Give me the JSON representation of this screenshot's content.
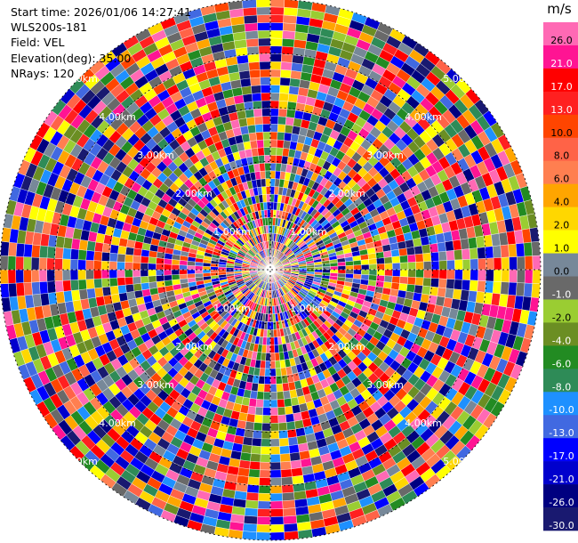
{
  "info": {
    "start_time": "Start time: 2026/01/06 14:27:41",
    "instrument": "WLS200s-181",
    "field": "Field: VEL",
    "elevation": "Elevation(deg): 35.00",
    "nrays": "NRays: 120"
  },
  "chart_data": {
    "type": "heatmap",
    "projection": "polar-ppi",
    "field": "VEL",
    "unit": "m/s",
    "n_rays": 120,
    "range_rings_km": [
      1.0,
      2.0,
      3.0,
      4.0,
      5.0
    ],
    "range_ring_labels": [
      "1.00km",
      "2.00km",
      "3.00km",
      "4.00km",
      "5.00km"
    ],
    "range_ring_label_angles_deg": [
      45,
      135,
      225,
      315
    ],
    "max_range_km": 5.0,
    "grid": true,
    "colorbar": {
      "label": "m/s",
      "placement": "right",
      "ticks": [
        26.0,
        21.0,
        17.0,
        13.0,
        10.0,
        8.0,
        6.0,
        4.0,
        2.0,
        1.0,
        0.0,
        -1.0,
        -2.0,
        -4.0,
        -6.0,
        -8.0,
        -10.0,
        -13.0,
        -17.0,
        -21.0,
        -26.0,
        -30.0
      ],
      "tick_labels": [
        "26.0",
        "21.0",
        "17.0",
        "13.0",
        "10.0",
        "8.0",
        "6.0",
        "4.0",
        "2.0",
        "1.0",
        "0.0",
        "-1.0",
        "-2.0",
        "-4.0",
        "-6.0",
        "-8.0",
        "-10.0",
        "-13.0",
        "-17.0",
        "-21.0",
        "-26.0",
        "-30.0"
      ],
      "colors": [
        "#ff69b4",
        "#ff1493",
        "#ff0000",
        "#ff2020",
        "#ff4500",
        "#ff6347",
        "#ff7f50",
        "#ffa500",
        "#ffd700",
        "#ffff00",
        "#778899",
        "#696969",
        "#9acd32",
        "#6b8e23",
        "#228b22",
        "#2e8b57",
        "#1e90ff",
        "#4169e1",
        "#0000ff",
        "#0000cd",
        "#000080",
        "#191970"
      ]
    }
  }
}
